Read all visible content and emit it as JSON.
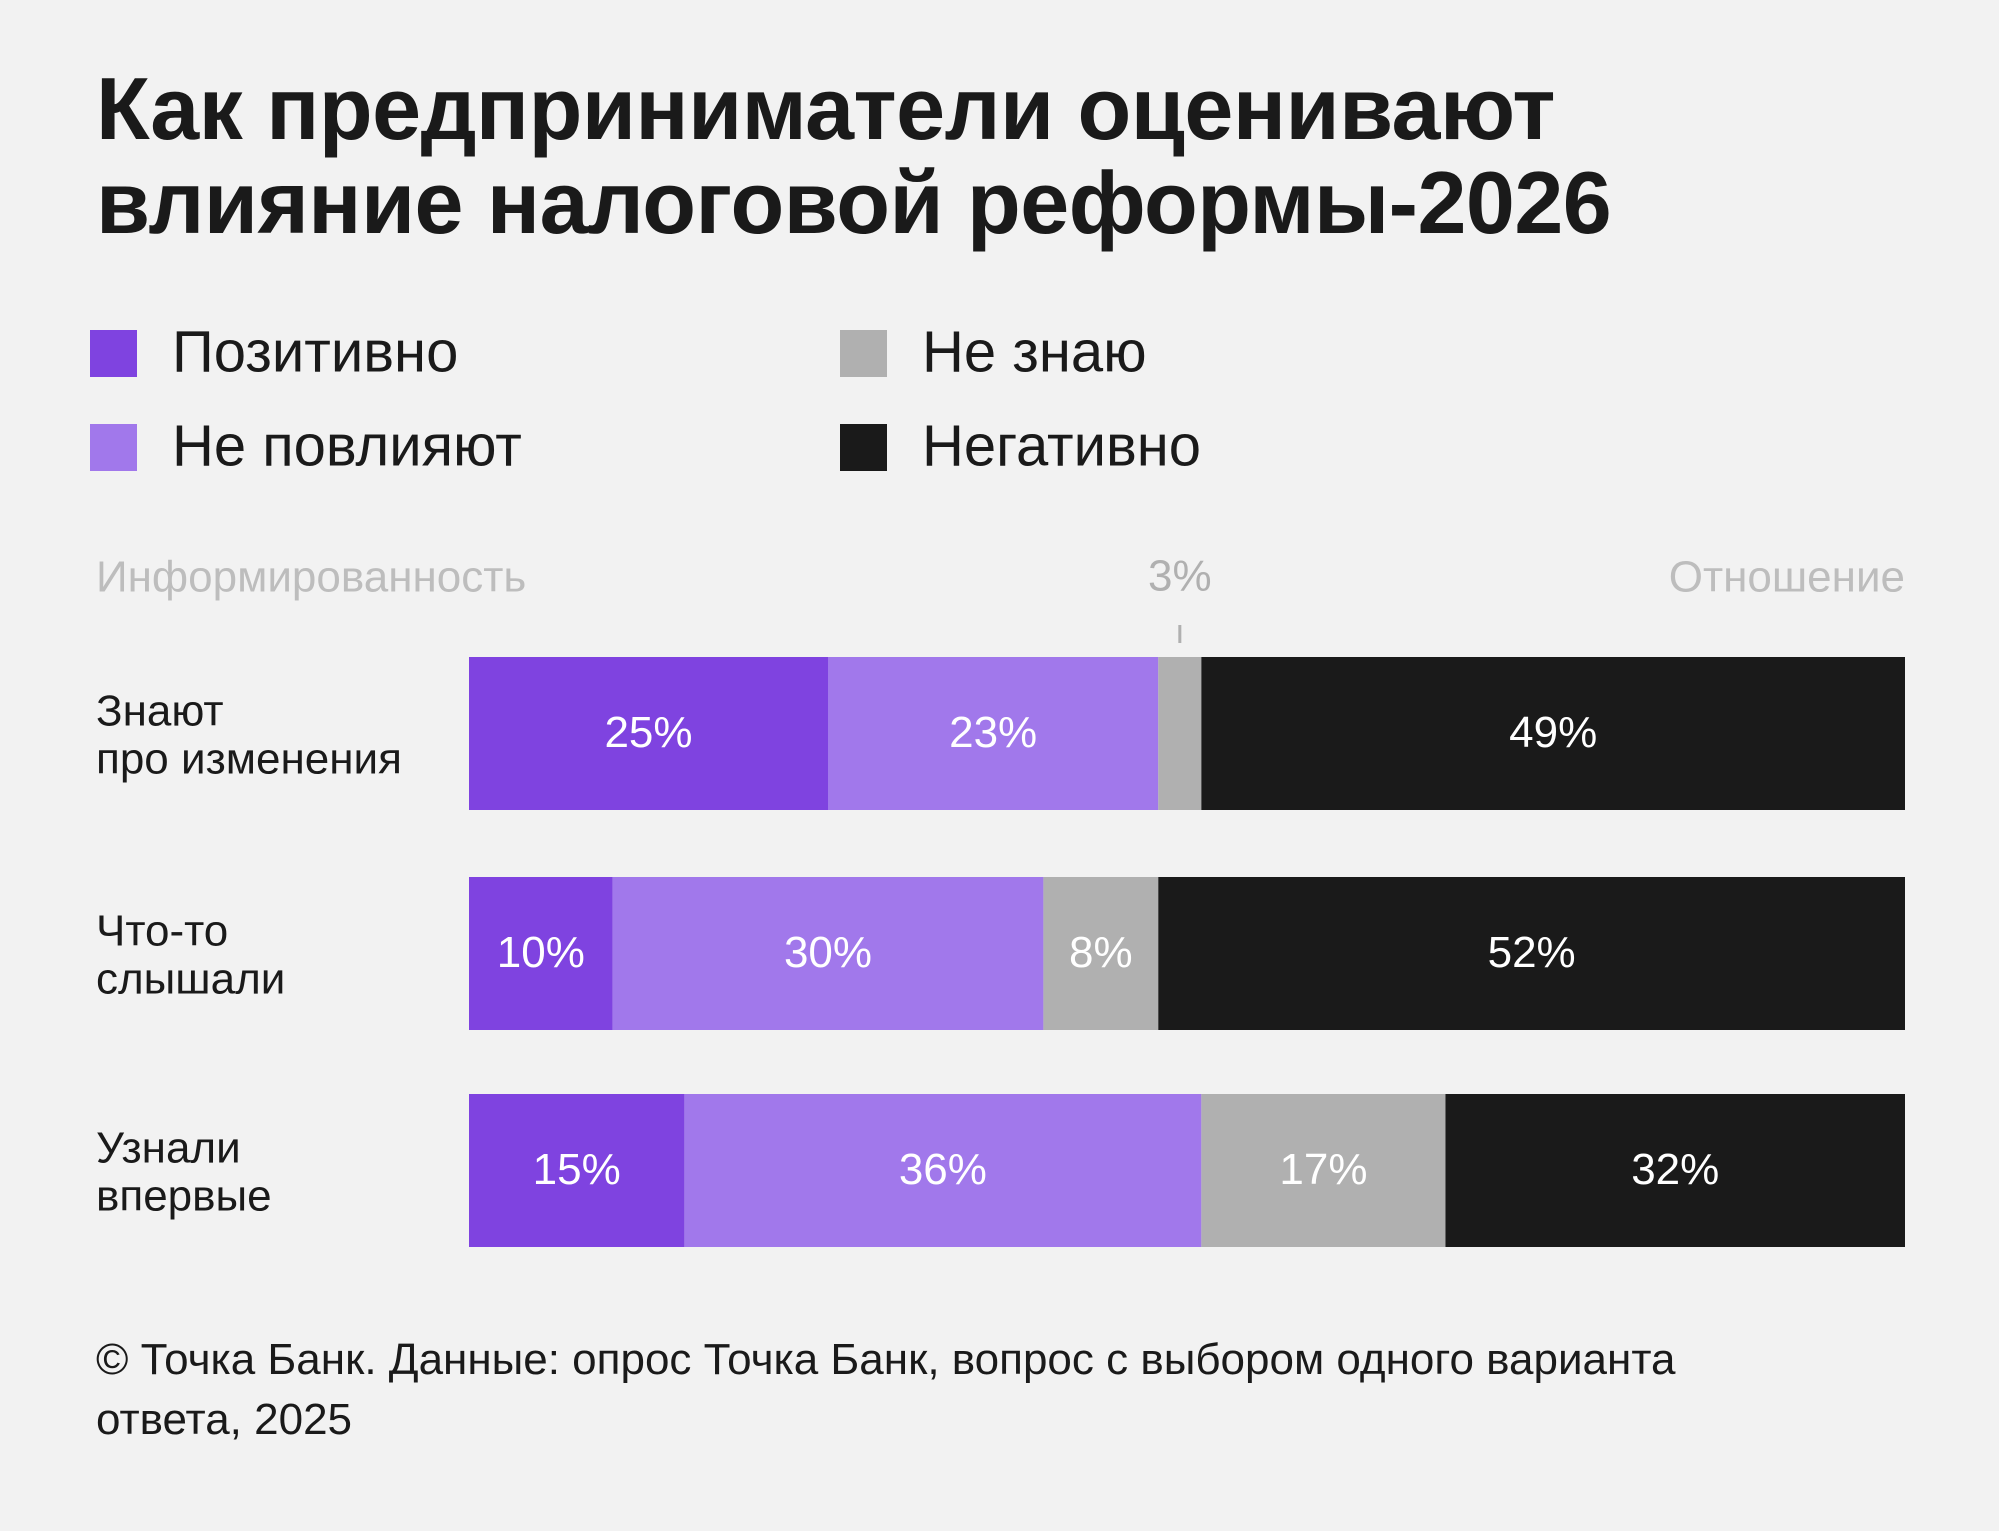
{
  "chart_data": {
    "type": "stacked_bar_horizontal",
    "title": "Как предприниматели оценивают влияние налоговой реформы-2026",
    "category_header": "Информированность",
    "value_header": "Отношение",
    "categories": [
      [
        "Знают",
        "про изменения"
      ],
      [
        "Что-то",
        "слышали"
      ],
      [
        "Узнали",
        "впервые"
      ]
    ],
    "xlim": [
      0,
      100
    ],
    "series": [
      {
        "name": "Позитивно",
        "color": "#7f43e0",
        "values": [
          25,
          10,
          15
        ],
        "value_labels": [
          "25%",
          "10%",
          "15%"
        ]
      },
      {
        "name": "Не повлияют",
        "color": "#a178eb",
        "values": [
          23,
          30,
          36
        ],
        "value_labels": [
          "23%",
          "30%",
          "36%"
        ]
      },
      {
        "name": "Не знаю",
        "color": "#b0b0b0",
        "values": [
          3,
          8,
          17
        ],
        "value_labels": [
          "3%",
          "8%",
          "17%"
        ]
      },
      {
        "name": "Негативно",
        "color": "#1a1a1a",
        "values": [
          49,
          52,
          32
        ],
        "value_labels": [
          "49%",
          "52%",
          "32%"
        ]
      }
    ],
    "source": "© Точка Банк. Данные: опрос Точка Банк, вопрос с выбором одного варианта ответа, 2025"
  }
}
